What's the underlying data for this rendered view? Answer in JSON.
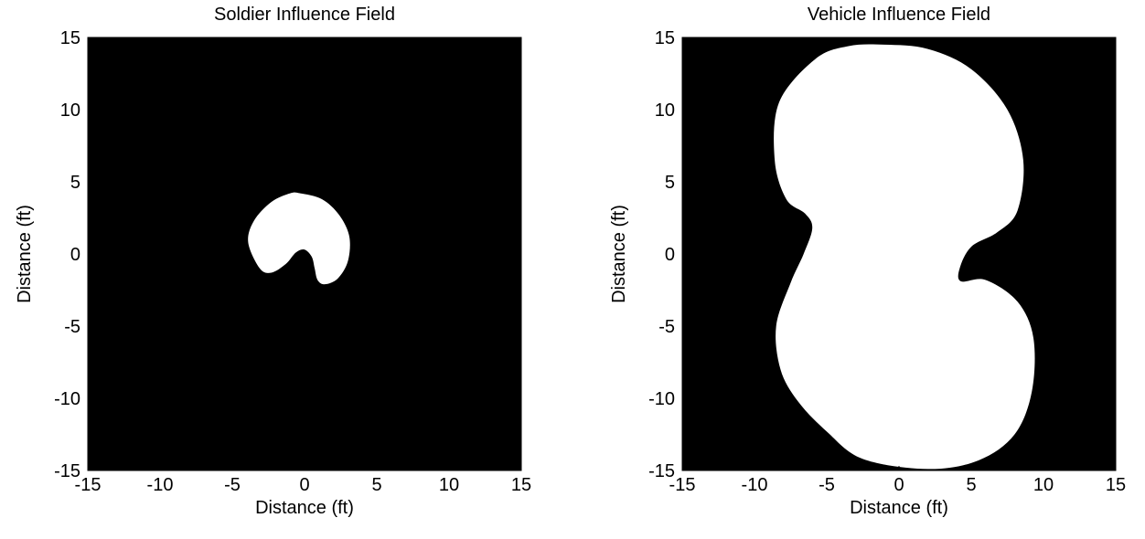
{
  "chart_data": [
    {
      "type": "heatmap",
      "title": "Soldier Influence Field",
      "xlabel": "Distance (ft)",
      "ylabel": "Distance (ft)",
      "xlim": [
        -15,
        15
      ],
      "ylim": [
        -15,
        15
      ],
      "xticks": [
        -15,
        -10,
        -5,
        0,
        5,
        10,
        15
      ],
      "yticks": [
        -15,
        -10,
        -5,
        0,
        5,
        10,
        15
      ],
      "background_color": "#000000",
      "region_color": "#ffffff",
      "grid": false,
      "region_outline": [
        [
          -0.3,
          4.2
        ],
        [
          1.2,
          3.8
        ],
        [
          2.4,
          2.7
        ],
        [
          3.1,
          1.2
        ],
        [
          3.0,
          -0.5
        ],
        [
          2.3,
          -1.7
        ],
        [
          1.4,
          -2.1
        ],
        [
          0.9,
          -1.8
        ],
        [
          0.7,
          -1.0
        ],
        [
          0.5,
          -0.2
        ],
        [
          0.0,
          0.3
        ],
        [
          -0.6,
          0.1
        ],
        [
          -1.3,
          -0.7
        ],
        [
          -2.3,
          -1.3
        ],
        [
          -3.1,
          -1.0
        ],
        [
          -3.9,
          0.8
        ],
        [
          -3.5,
          2.3
        ],
        [
          -2.3,
          3.6
        ],
        [
          -1.0,
          4.2
        ]
      ]
    },
    {
      "type": "heatmap",
      "title": "Vehicle Influence Field",
      "xlabel": "Distance (ft)",
      "ylabel": "Distance (ft)",
      "xlim": [
        -15,
        15
      ],
      "ylim": [
        -15,
        15
      ],
      "xticks": [
        -15,
        -10,
        -5,
        0,
        5,
        10,
        15
      ],
      "yticks": [
        -15,
        -10,
        -5,
        0,
        5,
        10,
        15
      ],
      "background_color": "#000000",
      "region_color": "#ffffff",
      "grid": false,
      "region_outline": [
        [
          -1.0,
          14.5
        ],
        [
          2.0,
          14.2
        ],
        [
          5.0,
          12.8
        ],
        [
          7.5,
          10.0
        ],
        [
          8.6,
          6.5
        ],
        [
          8.2,
          3.0
        ],
        [
          6.8,
          1.5
        ],
        [
          5.0,
          0.5
        ],
        [
          4.2,
          -1.0
        ],
        [
          4.3,
          -1.9
        ],
        [
          6.0,
          -1.8
        ],
        [
          8.2,
          -3.3
        ],
        [
          9.3,
          -5.8
        ],
        [
          9.2,
          -9.5
        ],
        [
          8.0,
          -12.5
        ],
        [
          5.5,
          -14.3
        ],
        [
          2.0,
          -14.9
        ],
        [
          -2.5,
          -14.2
        ],
        [
          -5.0,
          -12.3
        ],
        [
          -7.0,
          -10.2
        ],
        [
          -8.2,
          -8.0
        ],
        [
          -8.5,
          -5.0
        ],
        [
          -7.5,
          -2.0
        ],
        [
          -6.6,
          0.0
        ],
        [
          -6.0,
          1.8
        ],
        [
          -6.5,
          2.8
        ],
        [
          -7.8,
          3.8
        ],
        [
          -8.6,
          6.5
        ],
        [
          -8.3,
          10.5
        ],
        [
          -5.8,
          13.5
        ],
        [
          -3.5,
          14.4
        ]
      ]
    }
  ]
}
